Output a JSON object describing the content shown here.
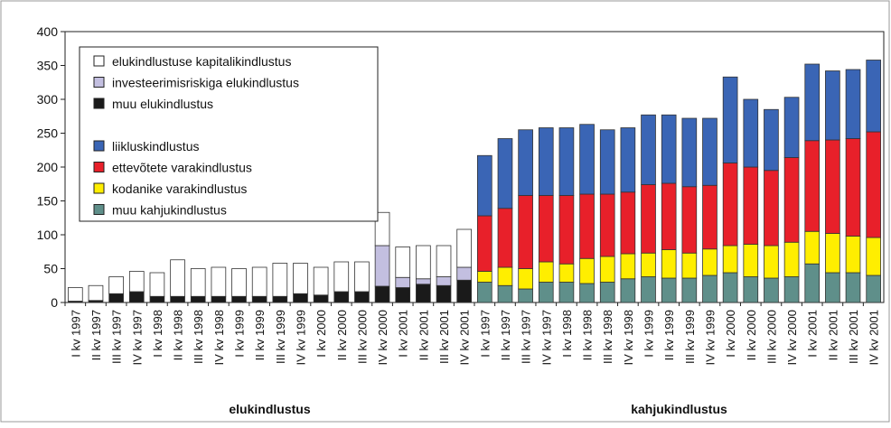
{
  "chart_data": {
    "type": "stacked-bar",
    "categories": [
      "I kv 1997",
      "II kv 1997",
      "III kv 1997",
      "IV kv 1997",
      "I kv 1998",
      "II kv 1998",
      "III kv 1998",
      "IV kv 1998",
      "I kv 1999",
      "II kv 1999",
      "III kv 1999",
      "IV kv 1999",
      "I kv 2000",
      "II kv 2000",
      "III kv 2000",
      "IV kv 2000",
      "I kv 2001",
      "II kv 2001",
      "III kv 2001",
      "IV kv 2001",
      "I kv 1997",
      "II kv 1997",
      "III kv 1997",
      "IV kv 1997",
      "I kv 1998",
      "II kv 1998",
      "III kv 1998",
      "IV kv 1998",
      "I kv 1999",
      "II kv 1999",
      "III kv 1999",
      "IV kv 1999",
      "I kv 2000",
      "II kv 2000",
      "III kv 2000",
      "IV kv 2000",
      "I kv 2001",
      "II kv 2001",
      "III kv 2001",
      "IV kv 2001"
    ],
    "group_labels": [
      "elukindlustus",
      "kahjukindlustus"
    ],
    "series": [
      {
        "name": "muu elukindlustus",
        "color": "#1a1a1a",
        "values": [
          2,
          3,
          13,
          16,
          9,
          9,
          9,
          9,
          9,
          9,
          9,
          13,
          11,
          16,
          16,
          24,
          22,
          27,
          25,
          33,
          null,
          null,
          null,
          null,
          null,
          null,
          null,
          null,
          null,
          null,
          null,
          null,
          null,
          null,
          null,
          null,
          null,
          null,
          null,
          null
        ]
      },
      {
        "name": "investeerimisriskiga elukindlustus",
        "color": "#c3bfe0",
        "values": [
          0,
          0,
          0,
          0,
          0,
          0,
          0,
          0,
          0,
          0,
          0,
          0,
          0,
          0,
          0,
          60,
          15,
          8,
          13,
          19,
          null,
          null,
          null,
          null,
          null,
          null,
          null,
          null,
          null,
          null,
          null,
          null,
          null,
          null,
          null,
          null,
          null,
          null,
          null,
          null
        ]
      },
      {
        "name": "elukindlustuse kapitalikindlustus",
        "color": "#ffffff",
        "values": [
          20,
          22,
          25,
          30,
          35,
          54,
          41,
          43,
          41,
          43,
          49,
          45,
          41,
          44,
          44,
          49,
          45,
          49,
          46,
          56,
          null,
          null,
          null,
          null,
          null,
          null,
          null,
          null,
          null,
          null,
          null,
          null,
          null,
          null,
          null,
          null,
          null,
          null,
          null,
          null
        ]
      },
      {
        "name": "muu kahjukindlustus",
        "color": "#5f8f8a",
        "values": [
          null,
          null,
          null,
          null,
          null,
          null,
          null,
          null,
          null,
          null,
          null,
          null,
          null,
          null,
          null,
          null,
          null,
          null,
          null,
          null,
          30,
          25,
          20,
          30,
          30,
          28,
          30,
          35,
          38,
          36,
          36,
          40,
          44,
          38,
          36,
          38,
          57,
          44,
          44,
          40
        ]
      },
      {
        "name": "kodanike varakindlustus",
        "color": "#ffee00",
        "values": [
          null,
          null,
          null,
          null,
          null,
          null,
          null,
          null,
          null,
          null,
          null,
          null,
          null,
          null,
          null,
          null,
          null,
          null,
          null,
          null,
          16,
          27,
          30,
          30,
          27,
          37,
          38,
          37,
          35,
          42,
          37,
          39,
          40,
          48,
          48,
          51,
          48,
          58,
          54,
          56
        ]
      },
      {
        "name": "ettevõtete varakindlustus",
        "color": "#e8202a",
        "values": [
          null,
          null,
          null,
          null,
          null,
          null,
          null,
          null,
          null,
          null,
          null,
          null,
          null,
          null,
          null,
          null,
          null,
          null,
          null,
          null,
          82,
          87,
          108,
          98,
          101,
          95,
          92,
          91,
          101,
          98,
          98,
          94,
          122,
          114,
          111,
          125,
          134,
          138,
          144,
          156
        ]
      },
      {
        "name": "liikluskindlustus",
        "color": "#3a65b5",
        "values": [
          null,
          null,
          null,
          null,
          null,
          null,
          null,
          null,
          null,
          null,
          null,
          null,
          null,
          null,
          null,
          null,
          null,
          null,
          null,
          null,
          89,
          103,
          97,
          100,
          100,
          103,
          95,
          95,
          103,
          101,
          101,
          99,
          127,
          100,
          90,
          89,
          113,
          102,
          102,
          106
        ]
      }
    ],
    "ylim": [
      0,
      400
    ],
    "yticks": [
      0,
      50,
      100,
      150,
      200,
      250,
      300,
      350,
      400
    ]
  }
}
